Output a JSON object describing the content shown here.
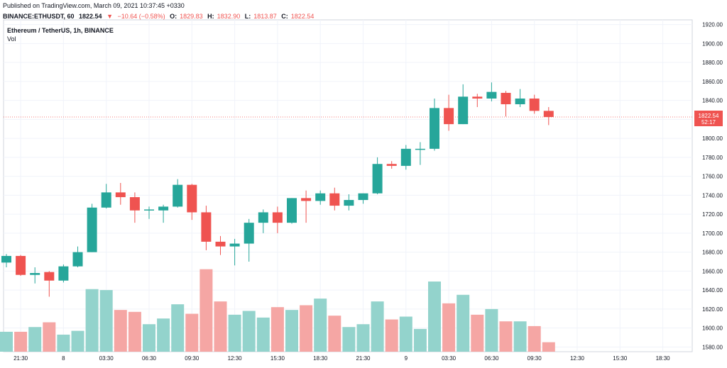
{
  "header": {
    "published": "Published on TradingView.com, March 09, 2021 10:37:45 +0330",
    "symbol": "BINANCE:ETHUSDT, 60",
    "last": "1822.54",
    "arrow": "▼",
    "change": "−10.64 (−0.58%)",
    "o_label": "O:",
    "o_val": "1829.83",
    "h_label": "H:",
    "h_val": "1832.90",
    "l_label": "L:",
    "l_val": "1813.87",
    "c_label": "C:",
    "c_val": "1822.54"
  },
  "legend": {
    "title": "Ethereum / TetherUS, 1h, BINANCE",
    "vol": "Vol"
  },
  "colors": {
    "up": "#26a69a",
    "down": "#ef5350",
    "up_vol": "#93d3cc",
    "down_vol": "#f5a6a4",
    "grid": "#f0f3fa",
    "price_line": "#ef5350"
  },
  "chart_data": {
    "type": "candlestick",
    "title": "Ethereum / TetherUS, 1h, BINANCE",
    "ylim": [
      1575,
      1925
    ],
    "y_ticks": [
      1580,
      1600,
      1620,
      1640,
      1660,
      1680,
      1700,
      1720,
      1740,
      1760,
      1780,
      1800,
      1820,
      1840,
      1860,
      1880,
      1900,
      1920
    ],
    "x_labels": [
      "21:30",
      "8",
      "03:30",
      "06:30",
      "09:30",
      "12:30",
      "15:30",
      "18:30",
      "21:30",
      "9",
      "03:30",
      "06:30",
      "09:30",
      "12:30",
      "15:30",
      "18:30"
    ],
    "x_label_index": [
      1,
      4,
      7,
      10,
      13,
      16,
      19,
      22,
      25,
      28,
      31,
      34,
      37,
      40,
      43,
      46
    ],
    "last_price": "1822.54",
    "countdown": "52:17",
    "candles": [
      {
        "o": 1669,
        "h": 1678,
        "l": 1664,
        "c": 1676
      },
      {
        "o": 1676,
        "h": 1677,
        "l": 1655,
        "c": 1656
      },
      {
        "o": 1656,
        "h": 1664,
        "l": 1647,
        "c": 1658
      },
      {
        "o": 1659,
        "h": 1660,
        "l": 1633,
        "c": 1650
      },
      {
        "o": 1650,
        "h": 1667,
        "l": 1648,
        "c": 1665
      },
      {
        "o": 1665,
        "h": 1686,
        "l": 1664,
        "c": 1680
      },
      {
        "o": 1680,
        "h": 1731,
        "l": 1680,
        "c": 1727
      },
      {
        "o": 1727,
        "h": 1752,
        "l": 1726,
        "c": 1743
      },
      {
        "o": 1743,
        "h": 1753,
        "l": 1730,
        "c": 1738
      },
      {
        "o": 1738,
        "h": 1743,
        "l": 1711,
        "c": 1724
      },
      {
        "o": 1725,
        "h": 1728,
        "l": 1715,
        "c": 1725
      },
      {
        "o": 1724,
        "h": 1730,
        "l": 1711,
        "c": 1728
      },
      {
        "o": 1728,
        "h": 1757,
        "l": 1727,
        "c": 1751
      },
      {
        "o": 1751,
        "h": 1752,
        "l": 1714,
        "c": 1722
      },
      {
        "o": 1722,
        "h": 1729,
        "l": 1682,
        "c": 1691
      },
      {
        "o": 1691,
        "h": 1697,
        "l": 1677,
        "c": 1686
      },
      {
        "o": 1686,
        "h": 1694,
        "l": 1666,
        "c": 1689
      },
      {
        "o": 1689,
        "h": 1715,
        "l": 1670,
        "c": 1711
      },
      {
        "o": 1711,
        "h": 1725,
        "l": 1700,
        "c": 1722
      },
      {
        "o": 1722,
        "h": 1728,
        "l": 1700,
        "c": 1711
      },
      {
        "o": 1711,
        "h": 1737,
        "l": 1710,
        "c": 1737
      },
      {
        "o": 1737,
        "h": 1745,
        "l": 1711,
        "c": 1734
      },
      {
        "o": 1734,
        "h": 1745,
        "l": 1730,
        "c": 1742
      },
      {
        "o": 1742,
        "h": 1748,
        "l": 1724,
        "c": 1729
      },
      {
        "o": 1729,
        "h": 1741,
        "l": 1724,
        "c": 1735
      },
      {
        "o": 1735,
        "h": 1742,
        "l": 1731,
        "c": 1742
      },
      {
        "o": 1742,
        "h": 1780,
        "l": 1741,
        "c": 1773
      },
      {
        "o": 1773,
        "h": 1776,
        "l": 1768,
        "c": 1771
      },
      {
        "o": 1771,
        "h": 1793,
        "l": 1767,
        "c": 1789
      },
      {
        "o": 1789,
        "h": 1796,
        "l": 1772,
        "c": 1789
      },
      {
        "o": 1789,
        "h": 1842,
        "l": 1787,
        "c": 1832
      },
      {
        "o": 1832,
        "h": 1846,
        "l": 1808,
        "c": 1815
      },
      {
        "o": 1815,
        "h": 1857,
        "l": 1815,
        "c": 1844
      },
      {
        "o": 1844,
        "h": 1847,
        "l": 1833,
        "c": 1842
      },
      {
        "o": 1842,
        "h": 1859,
        "l": 1839,
        "c": 1849
      },
      {
        "o": 1848,
        "h": 1850,
        "l": 1823,
        "c": 1836
      },
      {
        "o": 1836,
        "h": 1852,
        "l": 1833,
        "c": 1842
      },
      {
        "o": 1842,
        "h": 1846,
        "l": 1826,
        "c": 1829
      },
      {
        "o": 1829,
        "h": 1833,
        "l": 1814,
        "c": 1822.54
      }
    ],
    "volume": [
      1596,
      1596,
      1601,
      1606,
      1593,
      1597,
      1641,
      1640,
      1619,
      1617,
      1604,
      1610,
      1625,
      1615,
      1662,
      1628,
      1614,
      1618,
      1611,
      1622,
      1619,
      1624,
      1631,
      1613,
      1601,
      1604,
      1628,
      1609,
      1612,
      1599,
      1649,
      1626,
      1635,
      1614,
      1620,
      1607,
      1607,
      1602,
      1585
    ],
    "volume_axis": {
      "base": 1575,
      "label_note": "volume bars drawn on shared price axis scale"
    }
  }
}
